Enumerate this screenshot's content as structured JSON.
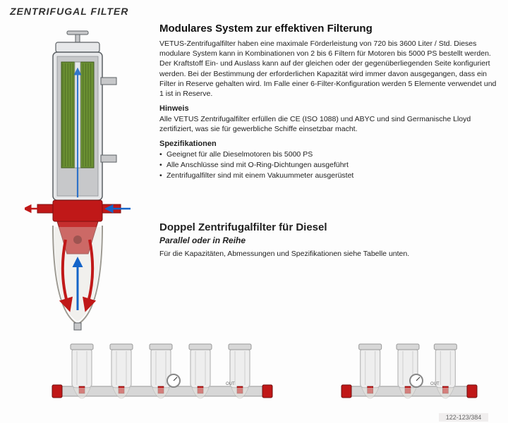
{
  "header": {
    "title": "ZENTRIFUGAL FILTER"
  },
  "section1": {
    "title": "Modulares System zur effektiven Filterung",
    "body": "VETUS-Zentrifugalfilter haben eine maximale Förderleistung von 720 bis 3600 Liter / Std. Dieses modulare System kann in Kombinationen von 2 bis 6 Filtern für Motoren bis 5000 PS bestellt werden. Der Kraftstoff Ein- und Auslass kann auf der gleichen oder der gegenüberliegenden Seite konfiguriert werden. Bei der Bestimmung der erforderlichen Kapazität wird immer davon ausgegangen, dass ein Filter in Reserve gehalten wird. Im Falle einer 6-Filter-Konfiguration werden 5 Elemente verwendet und 1 ist in Reserve.",
    "note_head": "Hinweis",
    "note_body": "Alle VETUS Zentrifugalfilter erfüllen die CE (ISO 1088) und ABYC und sind Germanische Lloyd zertifiziert, was sie für gewerbliche Schiffe einsetzbar macht.",
    "spec_head": "Spezifikationen",
    "specs": [
      "Geeignet für alle Dieselmotoren bis 5000 PS",
      "Alle Anschlüsse sind mit O-Ring-Dichtungen ausgeführt",
      "Zentrifugalfilter sind mit einem Vakuummeter ausgerüstet"
    ]
  },
  "section2": {
    "title": "Doppel Zentrifugalfilter für Diesel",
    "subtitle": "Parallel oder in Reihe",
    "body": "Für die Kapazitäten, Abmessungen und Spezifikationen siehe Tabelle unten."
  },
  "page_indicator": "122-123/384",
  "diagram": {
    "colors": {
      "outline": "#5b6064",
      "housing_light": "#e7e8ea",
      "housing_mid": "#c7c8ca",
      "housing_dark": "#8f9296",
      "element_green": "#6a8f32",
      "element_green_dark": "#3f5a1e",
      "red": "#c01818",
      "red_dark": "#7e0f0f",
      "blue": "#1464c8",
      "bowl": "#d9d6cf",
      "bowl_edge": "#9d9a92"
    }
  },
  "units": {
    "colors": {
      "can": "#eeeeee",
      "can_edge": "#b9b9b9",
      "manifold": "#d7d7d7",
      "valve": "#c01818",
      "gauge_face": "#ffffff",
      "gauge_ring": "#888"
    },
    "left_count": 5,
    "right_count": 3
  }
}
